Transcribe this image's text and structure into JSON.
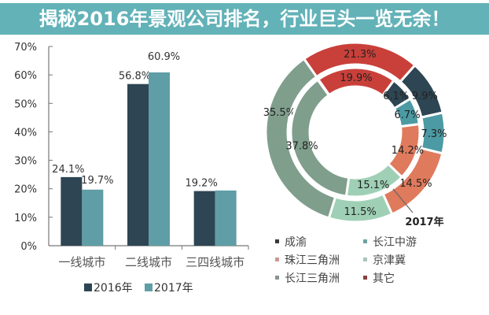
{
  "headline": "揭秘2016年景观公司排名，行业巨头一览无余！",
  "chart_data": [
    {
      "type": "bar",
      "categories": [
        "一线城市",
        "二线城市",
        "三四线城市"
      ],
      "series": [
        {
          "name": "2016年",
          "values": [
            24.1,
            56.8,
            19.2
          ],
          "labels": [
            "24.1%",
            "56.8%",
            "19.2%"
          ],
          "color": "#2e4553"
        },
        {
          "name": "2017年",
          "values": [
            19.7,
            60.9,
            19.4
          ],
          "labels": [
            "19.7%",
            "60.9%",
            ""
          ],
          "color": "#5f9ea6"
        }
      ],
      "yticks": [
        "0%",
        "10%",
        "20%",
        "30%",
        "40%",
        "50%",
        "60%",
        "70%"
      ],
      "ylim": [
        0,
        70
      ],
      "legend": "bottom"
    },
    {
      "type": "pie",
      "variant": "nested-donut",
      "rings": [
        {
          "name": "2017年",
          "position": "outer",
          "values": [
            21.3,
            9.9,
            7.3,
            14.5,
            11.5,
            35.5
          ],
          "labels": [
            "21.3%",
            "9.9%",
            "7.3%",
            "14.5%",
            "11.5%",
            "35.5%"
          ]
        },
        {
          "position": "inner",
          "values": [
            19.9,
            6.1,
            6.7,
            14.2,
            15.1,
            37.8
          ],
          "labels": [
            "19.9%",
            "6.1%",
            "6.7%",
            "14.2%",
            "15.1%",
            "37.8%"
          ]
        }
      ],
      "segments": [
        "其它",
        "成渝",
        "长江中游",
        "珠江三角洲",
        "京津冀",
        "长江三角洲"
      ],
      "colors": [
        "#c9403a",
        "#2e4553",
        "#4b9aa4",
        "#df7a5c",
        "#9fd0b5",
        "#7f9e8c"
      ],
      "legend": {
        "position": "bottom",
        "items": [
          {
            "label": "成渝",
            "color": "#3a3a3a"
          },
          {
            "label": "长江中游",
            "color": "#6fa2a4"
          },
          {
            "label": "珠江三角洲",
            "color": "#c99a92"
          },
          {
            "label": "京津冀",
            "color": "#a9c4bc"
          },
          {
            "label": "长江三角洲",
            "color": "#8a9490"
          },
          {
            "label": "其它",
            "color": "#8a3f3f"
          }
        ]
      }
    }
  ]
}
